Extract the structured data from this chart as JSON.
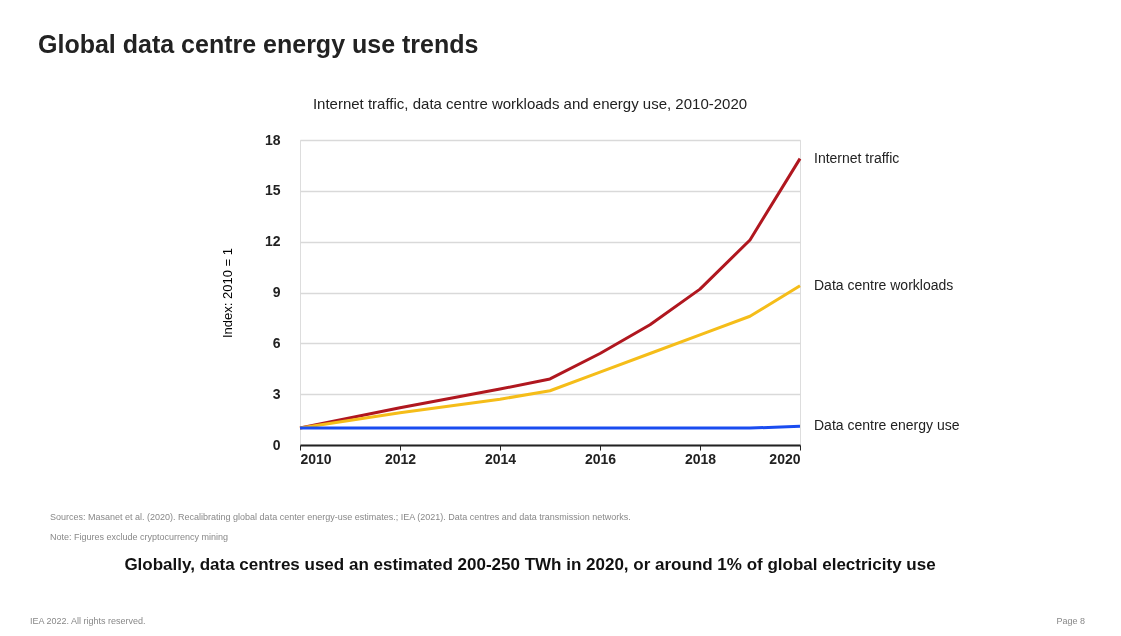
{
  "chart_data": {
    "type": "line",
    "title": "Global data centre energy use trends",
    "subtitle": "Internet traffic, data centre workloads and energy use, 2010-2020",
    "ylabel": "Index: 2010 = 1",
    "x": [
      2010,
      2012,
      2014,
      2015,
      2016,
      2017,
      2018,
      2019,
      2020
    ],
    "series": [
      {
        "name": "Internet traffic",
        "color": "#b0171f",
        "values": [
          1.0,
          2.2,
          3.3,
          3.9,
          5.4,
          7.1,
          9.2,
          12.1,
          16.9
        ]
      },
      {
        "name": "Data centre workloads",
        "color": "#f5bd19",
        "values": [
          1.0,
          1.9,
          2.7,
          3.2,
          4.3,
          5.4,
          6.5,
          7.6,
          9.4
        ]
      },
      {
        "name": "Data centre energy use",
        "color": "#1a4cf0",
        "values": [
          1.0,
          1.0,
          1.0,
          1.0,
          1.0,
          1.0,
          1.0,
          1.0,
          1.1
        ]
      }
    ],
    "xlim": [
      2010,
      2020
    ],
    "xticks": [
      2010,
      2012,
      2014,
      2016,
      2018,
      2020
    ],
    "ylim": [
      0,
      18
    ],
    "yticks": [
      0,
      3,
      6,
      9,
      12,
      15,
      18
    ],
    "grid": "y",
    "legend": false,
    "marker": "none",
    "line_style": "solid",
    "annotations": [
      "Sources: Masanet et al. (2020). Recalibrating global data center energy-use estimates.; IEA (2021). Data centres and data transmission networks.",
      "Note: Figures exclude cryptocurrency mining",
      "Globally, data centres used an estimated 200-250 TWh in 2020, or around 1% of global electricity use",
      "IEA 2022. All rights reserved.",
      "Page 8"
    ]
  }
}
